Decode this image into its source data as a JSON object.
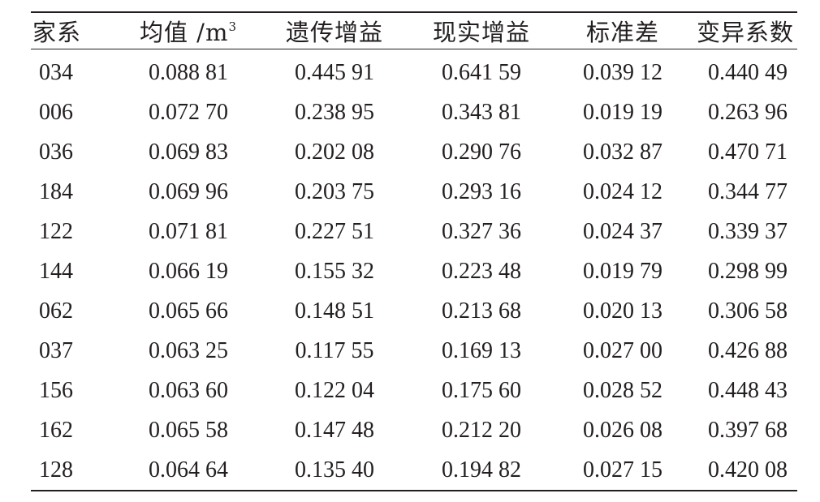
{
  "table": {
    "headers": {
      "family": "家系",
      "mean_label": "均值 /m",
      "mean_sup": "3",
      "genetic_gain": "遗传增益",
      "real_gain": "现实增益",
      "std_dev": "标准差",
      "cv": "变异系数"
    },
    "rows": [
      [
        "034",
        "0.088 81",
        "0.445 91",
        "0.641 59",
        "0.039 12",
        "0.440 49"
      ],
      [
        "006",
        "0.072 70",
        "0.238 95",
        "0.343 81",
        "0.019 19",
        "0.263 96"
      ],
      [
        "036",
        "0.069 83",
        "0.202 08",
        "0.290 76",
        "0.032 87",
        "0.470 71"
      ],
      [
        "184",
        "0.069 96",
        "0.203 75",
        "0.293 16",
        "0.024 12",
        "0.344 77"
      ],
      [
        "122",
        "0.071 81",
        "0.227 51",
        "0.327 36",
        "0.024 37",
        "0.339 37"
      ],
      [
        "144",
        "0.066 19",
        "0.155 32",
        "0.223 48",
        "0.019 79",
        "0.298 99"
      ],
      [
        "062",
        "0.065 66",
        "0.148 51",
        "0.213 68",
        "0.020 13",
        "0.306 58"
      ],
      [
        "037",
        "0.063 25",
        "0.117 55",
        "0.169 13",
        "0.027 00",
        "0.426 88"
      ],
      [
        "156",
        "0.063 60",
        "0.122 04",
        "0.175 60",
        "0.028 52",
        "0.448 43"
      ],
      [
        "162",
        "0.065 58",
        "0.147 48",
        "0.212 20",
        "0.026 08",
        "0.397 68"
      ],
      [
        "128",
        "0.064 64",
        "0.135 40",
        "0.194 82",
        "0.027 15",
        "0.420 08"
      ]
    ]
  }
}
